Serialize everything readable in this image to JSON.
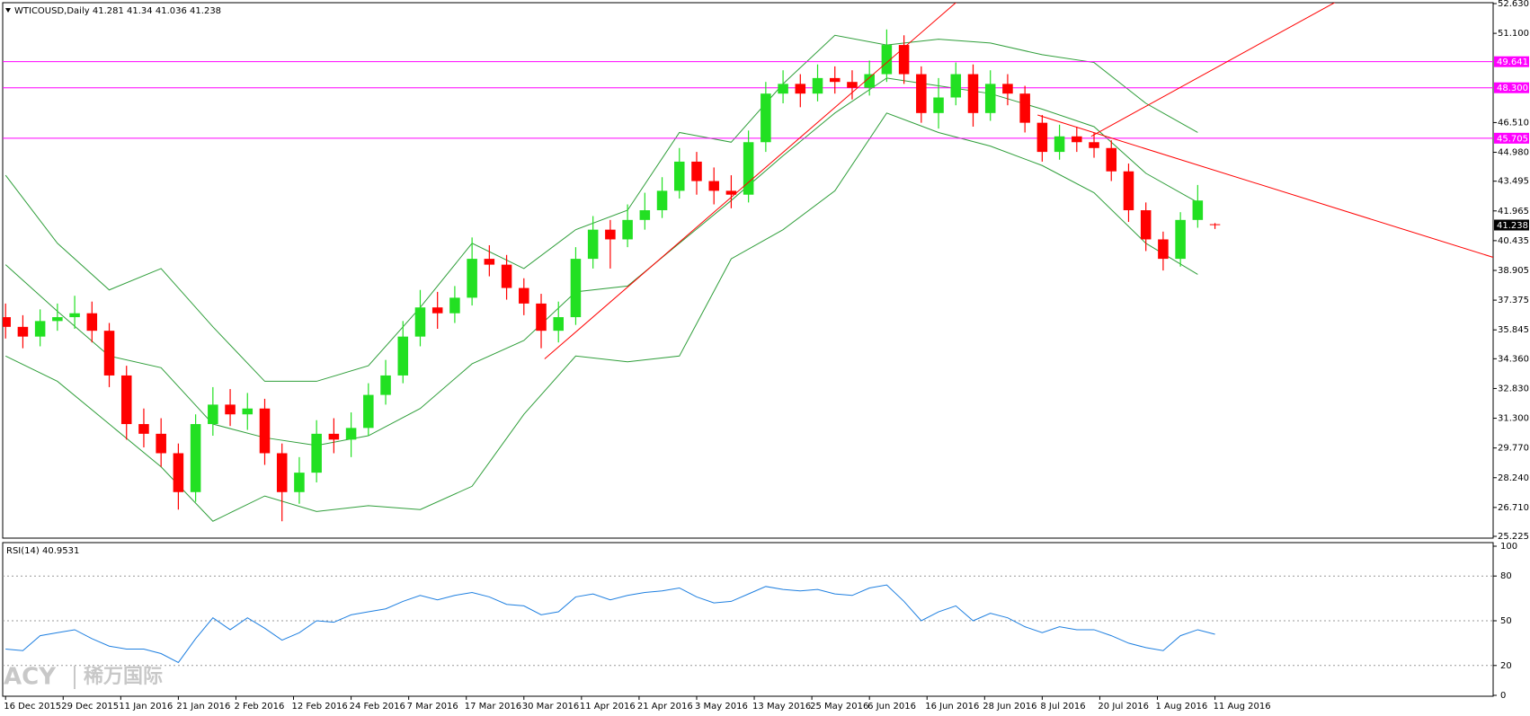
{
  "chart_data": [
    {
      "type": "candlestick",
      "title": "WTICOUSD,Daily",
      "xlim": [
        -0.5,
        258.3
      ],
      "ylim": [
        25.225,
        52.63
      ],
      "x": [
        0,
        3,
        6,
        9,
        12,
        15,
        18,
        21,
        24,
        27,
        30,
        33,
        36,
        39,
        42,
        45,
        48,
        51,
        54,
        57,
        60,
        63,
        66,
        69,
        72,
        75,
        78,
        81,
        84,
        87,
        90,
        93,
        96,
        99,
        102,
        105,
        108,
        111,
        114,
        117,
        120,
        123,
        126,
        129,
        132,
        135,
        138,
        141,
        144,
        147,
        150,
        153,
        156,
        159,
        162,
        165,
        168,
        171,
        174,
        177,
        180,
        183,
        186,
        189,
        192,
        195,
        198,
        201,
        204,
        207,
        210
      ],
      "open": [
        36.5,
        36.0,
        35.5,
        36.3,
        36.5,
        36.7,
        35.8,
        33.5,
        31.0,
        30.5,
        29.5,
        27.5,
        31.0,
        32.0,
        31.5,
        31.8,
        29.5,
        27.5,
        28.5,
        30.5,
        30.2,
        30.8,
        32.5,
        33.5,
        35.5,
        37.0,
        36.7,
        37.5,
        39.5,
        39.2,
        38.0,
        37.2,
        35.8,
        36.5,
        39.5,
        41.0,
        40.5,
        41.5,
        42.0,
        43.0,
        44.5,
        43.5,
        43.0,
        42.8,
        45.5,
        48.0,
        48.5,
        48.0,
        48.8,
        48.6,
        48.3,
        49.0,
        50.5,
        49.0,
        47.0,
        47.8,
        49.0,
        47.0,
        48.5,
        48.0,
        46.5,
        45.0,
        45.8,
        45.5,
        45.2,
        44.0,
        42.0,
        40.5,
        39.5,
        41.5,
        41.281
      ],
      "high": [
        37.2,
        36.6,
        36.9,
        37.2,
        37.6,
        37.3,
        36.2,
        34.0,
        31.8,
        31.3,
        30.0,
        31.5,
        32.9,
        32.8,
        32.6,
        32.3,
        30.0,
        29.3,
        31.2,
        31.3,
        31.6,
        33.1,
        34.3,
        36.3,
        37.9,
        37.8,
        38.1,
        40.6,
        40.2,
        39.7,
        38.5,
        37.7,
        37.3,
        40.1,
        41.7,
        41.5,
        42.3,
        42.9,
        43.7,
        45.2,
        45.0,
        44.2,
        43.8,
        46.1,
        48.6,
        49.2,
        49.0,
        49.5,
        49.4,
        49.2,
        49.7,
        51.3,
        51.0,
        49.4,
        48.8,
        49.6,
        49.5,
        49.2,
        49.0,
        48.4,
        46.9,
        46.4,
        46.3,
        46.0,
        45.6,
        44.4,
        42.4,
        40.9,
        41.9,
        43.3,
        41.34
      ],
      "low": [
        35.4,
        34.9,
        35.0,
        35.8,
        35.9,
        35.2,
        32.9,
        30.2,
        29.8,
        28.8,
        26.6,
        27.0,
        30.4,
        30.9,
        30.7,
        28.9,
        26.0,
        26.9,
        28.0,
        29.5,
        29.3,
        30.4,
        32.0,
        33.1,
        35.0,
        35.9,
        36.2,
        37.1,
        38.6,
        37.4,
        36.6,
        34.9,
        35.2,
        36.1,
        39.0,
        39.0,
        40.1,
        41.0,
        41.6,
        42.6,
        42.8,
        42.3,
        42.1,
        42.4,
        45.0,
        47.5,
        47.3,
        47.6,
        48.0,
        47.7,
        47.9,
        48.6,
        48.5,
        46.5,
        46.2,
        47.4,
        46.3,
        46.6,
        47.4,
        46.0,
        44.5,
        44.6,
        45.0,
        44.7,
        43.5,
        41.4,
        39.9,
        38.9,
        39.1,
        41.1,
        41.036
      ],
      "close": [
        36.0,
        35.5,
        36.3,
        36.5,
        36.7,
        35.8,
        33.5,
        31.0,
        30.5,
        29.5,
        27.5,
        31.0,
        32.0,
        31.5,
        31.8,
        29.5,
        27.5,
        28.5,
        30.5,
        30.2,
        30.8,
        32.5,
        33.5,
        35.5,
        37.0,
        36.7,
        37.5,
        39.5,
        39.2,
        38.0,
        37.2,
        35.8,
        36.5,
        39.5,
        41.0,
        40.5,
        41.5,
        42.0,
        43.0,
        44.5,
        43.5,
        43.0,
        42.8,
        45.5,
        48.0,
        48.5,
        48.0,
        48.8,
        48.6,
        48.3,
        49.0,
        50.5,
        49.0,
        47.0,
        47.8,
        49.0,
        47.0,
        48.5,
        48.0,
        46.5,
        45.0,
        45.8,
        45.5,
        45.2,
        44.0,
        42.0,
        40.5,
        39.5,
        41.5,
        42.5,
        41.238
      ],
      "up_color": "#22e022",
      "down_color": "#ff0000",
      "bands": {
        "color": "#2f9e3a",
        "x": [
          0,
          9,
          18,
          27,
          36,
          45,
          54,
          63,
          72,
          81,
          90,
          99,
          108,
          117,
          126,
          135,
          144,
          153,
          162,
          171,
          180,
          189,
          198,
          207
        ],
        "upper": [
          43.8,
          40.3,
          37.9,
          39.0,
          36.0,
          33.2,
          33.2,
          34.0,
          37.0,
          40.3,
          39.0,
          41.0,
          42.0,
          46.0,
          45.5,
          48.5,
          51.0,
          50.5,
          50.8,
          50.6,
          50.0,
          49.6,
          47.5,
          46.0
        ],
        "middle": [
          39.2,
          36.8,
          34.5,
          33.9,
          31.0,
          30.3,
          29.9,
          30.4,
          31.8,
          34.1,
          35.3,
          37.8,
          38.1,
          40.3,
          42.5,
          44.8,
          47.0,
          48.8,
          48.4,
          48.0,
          47.2,
          46.3,
          43.9,
          42.4
        ],
        "lower": [
          34.5,
          33.2,
          31.0,
          28.8,
          26.0,
          27.3,
          26.5,
          26.8,
          26.6,
          27.8,
          31.5,
          34.5,
          34.2,
          34.5,
          39.5,
          41.0,
          43.0,
          47.0,
          46.0,
          45.3,
          44.3,
          42.9,
          40.3,
          38.7
        ]
      },
      "trendline_color": "#ff0000",
      "trendlines": [
        {
          "x": [
            93.6,
            165.6
          ],
          "y": [
            34.35,
            52.83
          ]
        },
        {
          "x": [
            188.5,
            231.7
          ],
          "y": [
            45.8,
            52.83
          ]
        },
        {
          "x": [
            179.2,
            258.8
          ],
          "y": [
            46.9,
            39.53
          ]
        }
      ],
      "level_color": "#ff00ff",
      "levels": [
        49.641,
        {
          "value": 48.3,
          "label": "48.300"
        },
        45.705
      ],
      "yticks": [
        {
          "value": 52.63,
          "label": "52.630"
        },
        {
          "value": 51.1,
          "label": "51.100"
        },
        {
          "value": 46.51,
          "label": "46.510"
        },
        {
          "value": 44.98,
          "label": "44.980"
        },
        43.495,
        41.965,
        40.435,
        38.905,
        37.375,
        35.845,
        {
          "value": 34.36,
          "label": "34.360"
        },
        {
          "value": 32.83,
          "label": "32.830"
        },
        {
          "value": 31.3,
          "label": "31.300"
        },
        {
          "value": 29.77,
          "label": "29.770"
        },
        {
          "value": 28.24,
          "label": "28.240"
        },
        {
          "value": 26.71,
          "label": "26.710"
        },
        25.225
      ]
    },
    {
      "type": "line",
      "title": "RSI(14)",
      "color": "#1e7fe0",
      "xlim": [
        -0.5,
        258.3
      ],
      "ylim": [
        0,
        100
      ],
      "yticks": [
        0,
        20,
        50,
        80,
        100
      ],
      "x": [
        0,
        3,
        6,
        9,
        12,
        15,
        18,
        21,
        24,
        27,
        30,
        33,
        36,
        39,
        42,
        45,
        48,
        51,
        54,
        57,
        60,
        63,
        66,
        69,
        72,
        75,
        78,
        81,
        84,
        87,
        90,
        93,
        96,
        99,
        102,
        105,
        108,
        111,
        114,
        117,
        120,
        123,
        126,
        129,
        132,
        135,
        138,
        141,
        144,
        147,
        150,
        153,
        156,
        159,
        162,
        165,
        168,
        171,
        174,
        177,
        180,
        183,
        186,
        189,
        192,
        195,
        198,
        201,
        204,
        207,
        210
      ],
      "values": [
        31,
        30,
        40,
        42,
        44,
        38,
        33,
        31,
        31,
        28,
        22,
        38,
        52,
        44,
        52,
        45,
        37,
        42,
        50,
        49,
        54,
        56,
        58,
        63,
        67,
        64,
        67,
        69,
        66,
        61,
        60,
        54,
        56,
        66,
        68,
        64,
        67,
        69,
        70,
        72,
        66,
        62,
        63,
        68,
        73,
        71,
        70,
        71,
        68,
        67,
        72,
        74,
        63,
        50,
        56,
        60,
        50,
        55,
        52,
        46,
        42,
        46,
        44,
        44,
        40,
        35,
        32,
        30,
        40,
        44,
        40.9531
      ],
      "xticks": [
        {
          "value": 0,
          "label": "16 Dec 2015"
        },
        {
          "value": 10,
          "label": "29 Dec 2015"
        },
        {
          "value": 20,
          "label": "11 Jan 2016"
        },
        {
          "value": 30,
          "label": "21 Jan 2016"
        },
        {
          "value": 40,
          "label": "2 Feb 2016"
        },
        {
          "value": 50,
          "label": "12 Feb 2016"
        },
        {
          "value": 60,
          "label": "24 Feb 2016"
        },
        {
          "value": 70,
          "label": "7 Mar 2016"
        },
        {
          "value": 80,
          "label": "17 Mar 2016"
        },
        {
          "value": 90,
          "label": "30 Mar 2016"
        },
        {
          "value": 100,
          "label": "11 Apr 2016"
        },
        {
          "value": 110,
          "label": "21 Apr 2016"
        },
        {
          "value": 120,
          "label": "3 May 2016"
        },
        {
          "value": 130,
          "label": "13 May 2016"
        },
        {
          "value": 140,
          "label": "25 May 2016"
        },
        {
          "value": 150,
          "label": "6 Jun 2016"
        },
        {
          "value": 160,
          "label": "16 Jun 2016"
        },
        {
          "value": 170,
          "label": "28 Jun 2016"
        },
        {
          "value": 180,
          "label": "8 Jul 2016"
        },
        {
          "value": 190,
          "label": "20 Jul 2016"
        },
        {
          "value": 200,
          "label": "1 Aug 2016"
        },
        {
          "value": 210,
          "label": "11 Aug 2016"
        }
      ]
    }
  ],
  "watermark": {
    "brand": "ACY",
    "name": "稀万国际"
  }
}
